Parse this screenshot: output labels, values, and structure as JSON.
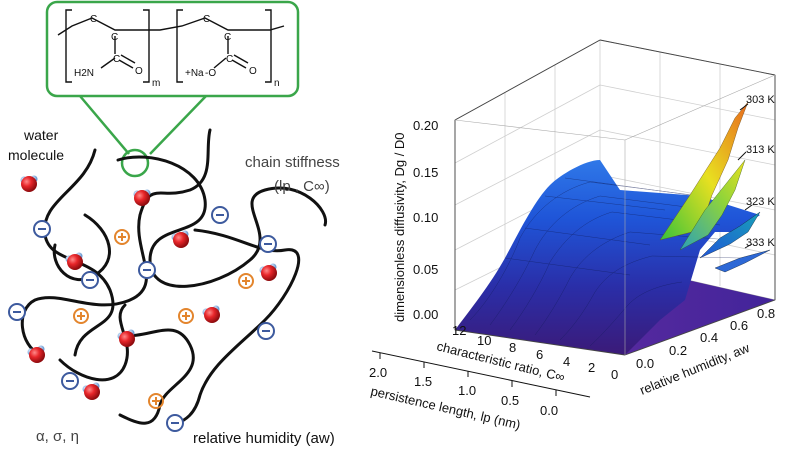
{
  "monomer": {
    "m_unit": {
      "c1": "C",
      "c2": "C",
      "c3": "C",
      "amide": "H2N",
      "oxygen": "O",
      "sub": "m"
    },
    "n_unit": {
      "c1": "C",
      "c2": "C",
      "c3": "C",
      "counterion": "+Na",
      "o_minus": "-O",
      "oxygen": "O",
      "sub": "n"
    }
  },
  "left_panel": {
    "water_label_line1": "water",
    "water_label_line2": "molecule",
    "stiffness_label": "chain stiffness",
    "stiffness_params": "(lp , C∞)",
    "greek_params": "α, σ, η",
    "humidity_label": "relative humidity (aw)"
  },
  "chart_data": {
    "type": "surface-3d",
    "z_axis": {
      "label": "dimensionless diffusivity, Dg / D0",
      "ticks": [
        "0.00",
        "0.05",
        "0.10",
        "0.15",
        "0.20"
      ],
      "range": [
        0,
        0.22
      ]
    },
    "x_axis": {
      "label": "characteristic ratio, C∞",
      "ticks": [
        "12",
        "10",
        "8",
        "6",
        "4",
        "2",
        "0"
      ]
    },
    "x_axis_secondary": {
      "label": "persistence length, lp (nm)",
      "ticks": [
        "2.0",
        "1.5",
        "1.0",
        "0.5",
        "0.0"
      ]
    },
    "y_axis": {
      "label": "relative humidity, aw",
      "ticks": [
        "0.0",
        "0.2",
        "0.4",
        "0.6",
        "0.8"
      ]
    },
    "series": [
      {
        "name": "303 K",
        "peak_value": 0.2
      },
      {
        "name": "313 K",
        "peak_value": 0.16
      },
      {
        "name": "323 K",
        "peak_value": 0.1
      },
      {
        "name": "333 K",
        "peak_value": 0.06
      }
    ],
    "grid": true,
    "colormap": "purple-blue-green-yellow-orange"
  },
  "colors": {
    "callout_green": "#3aa64a",
    "charge_ring": "#3d5a9e",
    "plus_orange": "#e3852d",
    "water_red": "#e8262a",
    "chain": "#111111"
  }
}
